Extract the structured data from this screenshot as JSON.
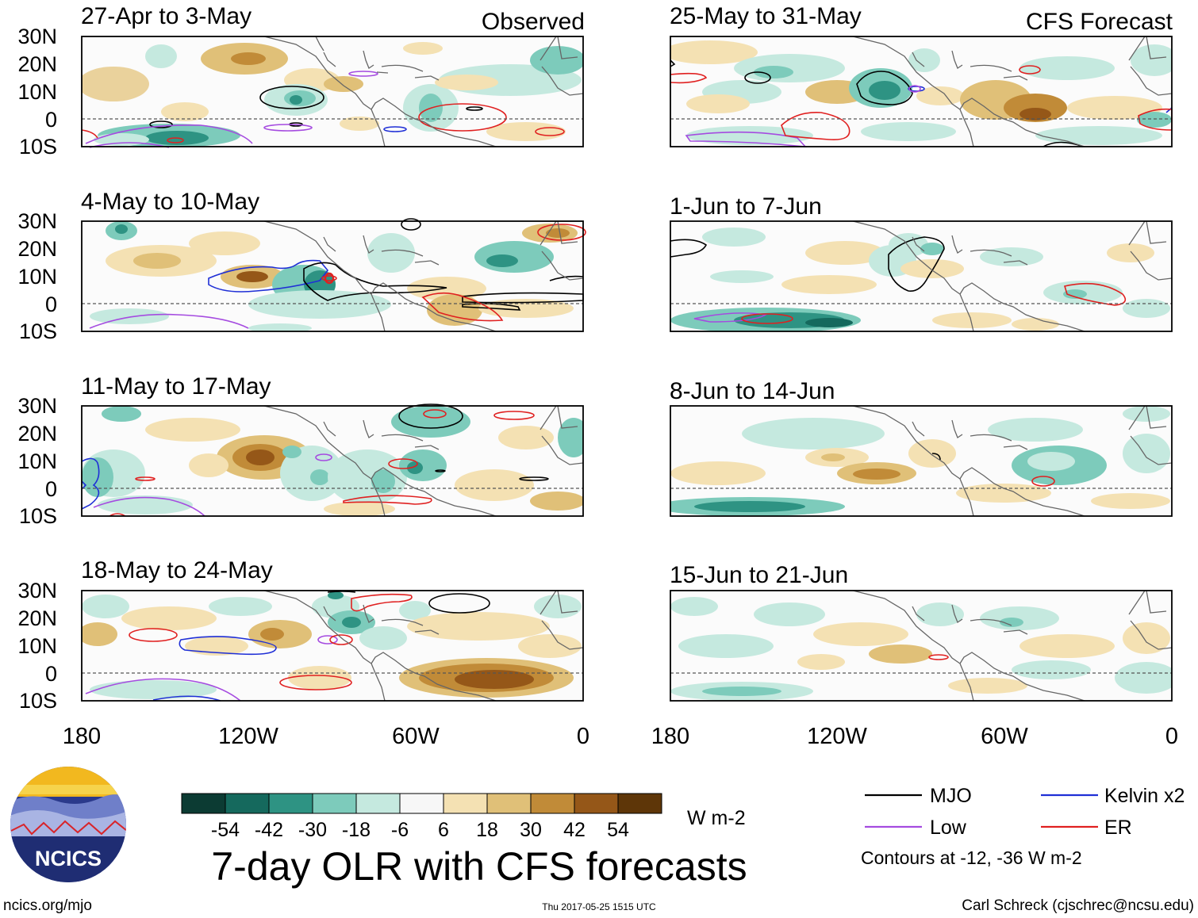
{
  "headers": {
    "observed": "Observed",
    "forecast": "CFS Forecast"
  },
  "panels": [
    {
      "id": "obs-1",
      "column": "observed",
      "title": "27-Apr to 3-May"
    },
    {
      "id": "obs-2",
      "column": "observed",
      "title": "4-May to 10-May"
    },
    {
      "id": "obs-3",
      "column": "observed",
      "title": "11-May to 17-May"
    },
    {
      "id": "obs-4",
      "column": "observed",
      "title": "18-May to 24-May"
    },
    {
      "id": "fc-1",
      "column": "forecast",
      "title": "25-May to 31-May"
    },
    {
      "id": "fc-2",
      "column": "forecast",
      "title": "1-Jun to 7-Jun"
    },
    {
      "id": "fc-3",
      "column": "forecast",
      "title": "8-Jun to 14-Jun"
    },
    {
      "id": "fc-4",
      "column": "forecast",
      "title": "15-Jun to 21-Jun"
    }
  ],
  "lat_labels": [
    "30N",
    "20N",
    "10N",
    "0",
    "10S"
  ],
  "lon_labels": [
    "180",
    "120W",
    "60W",
    "0"
  ],
  "colorbar": {
    "colors": [
      "#0c3b33",
      "#15695d",
      "#2e9383",
      "#7dcbbb",
      "#c5e9df",
      "#f7f7f7",
      "#f4e1b3",
      "#e0c078",
      "#c18b38",
      "#955718",
      "#5e3608"
    ],
    "labels": [
      "-54",
      "-42",
      "-30",
      "-18",
      "-6",
      "6",
      "18",
      "30",
      "42",
      "54"
    ],
    "units": "W m-2"
  },
  "legend": {
    "items": [
      {
        "label": "MJO",
        "color": "#000000"
      },
      {
        "label": "Kelvin x2",
        "color": "#1f2fd6"
      },
      {
        "label": "Low",
        "color": "#a54be0"
      },
      {
        "label": "ER",
        "color": "#e02020"
      }
    ],
    "note": "Contours at -12, -36 W m-2"
  },
  "title": "7-day OLR with CFS forecasts",
  "logo_text": "NCICS",
  "footer": {
    "url": "ncics.org/mjo",
    "timestamp": "Thu 2017-05-25 1515 UTC",
    "credit": "Carl Schreck (cjschrec@ncsu.edu)"
  }
}
